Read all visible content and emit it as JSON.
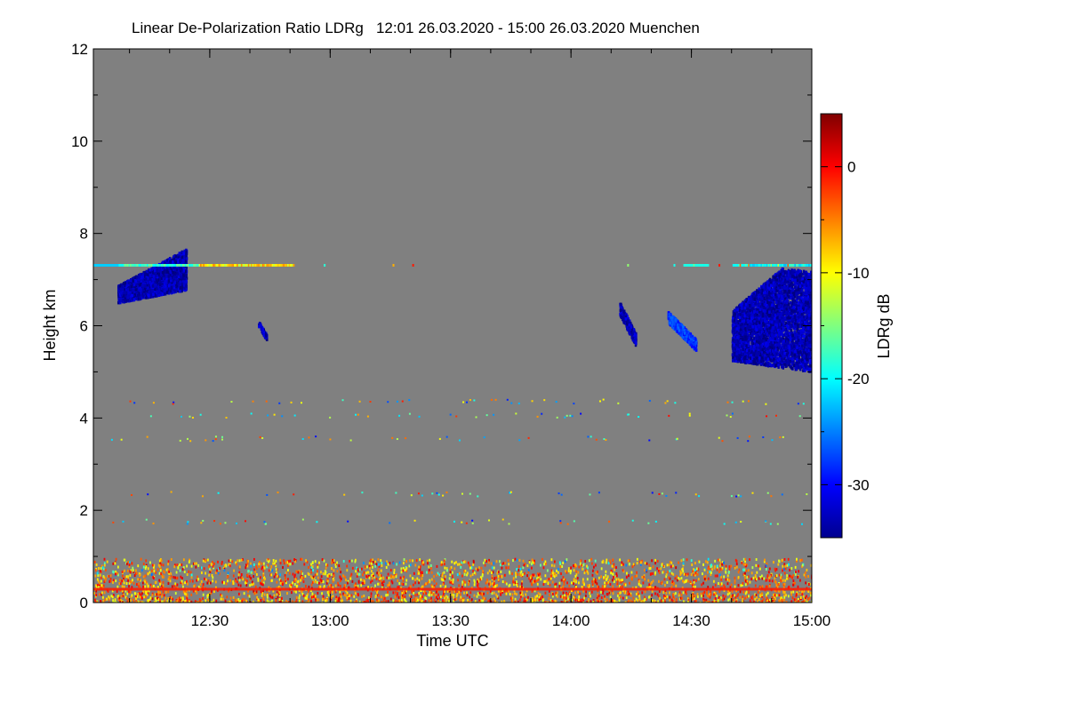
{
  "chart_data": {
    "type": "heatmap",
    "title": "Linear De-Polarization Ratio LDRg",
    "subtitle": "12:01 26.03.2020 - 15:00 26.03.2020 Muenchen",
    "xlabel": "Time UTC",
    "ylabel": "Height km",
    "x_range_minutes_utc": [
      721,
      900
    ],
    "x_ticks": [
      {
        "label": "12:30",
        "minutes": 750
      },
      {
        "label": "13:00",
        "minutes": 780
      },
      {
        "label": "13:30",
        "minutes": 810
      },
      {
        "label": "14:00",
        "minutes": 840
      },
      {
        "label": "14:30",
        "minutes": 870
      },
      {
        "label": "15:00",
        "minutes": 900
      }
    ],
    "ylim": [
      0,
      12
    ],
    "y_ticks": [
      0,
      2,
      4,
      6,
      8,
      10,
      12
    ],
    "colorbar": {
      "label": "LDRg dB",
      "range": [
        -35,
        5
      ],
      "ticks": [
        {
          "label": "0",
          "value": 0
        },
        {
          "label": "-10",
          "value": -10
        },
        {
          "label": "-20",
          "value": -20
        },
        {
          "label": "-30",
          "value": -30
        }
      ],
      "colormap": "jet"
    },
    "background_color": "#808080",
    "features": [
      {
        "name": "cirrus-patch-1",
        "t_start": 727,
        "t_end": 744,
        "h_min": 6.3,
        "h_max": 7.9,
        "ldr": -33
      },
      {
        "name": "cirrus-patch-2",
        "t_start": 762,
        "t_end": 764,
        "h_min": 5.7,
        "h_max": 6.1,
        "ldr": -33
      },
      {
        "name": "cirrus-patch-3",
        "t_start": 852,
        "t_end": 856,
        "h_min": 5.6,
        "h_max": 6.5,
        "ldr": -33
      },
      {
        "name": "cirrus-patch-4",
        "t_start": 864,
        "t_end": 871,
        "h_min": 5.5,
        "h_max": 6.3,
        "ldr": -28
      },
      {
        "name": "cirrus-patch-5",
        "t_start": 880,
        "t_end": 900,
        "h_min": 5.0,
        "h_max": 7.4,
        "ldr": -33
      },
      {
        "name": "line-7km",
        "t_start": 721,
        "t_end": 900,
        "h": 7.3,
        "ldr": -15
      },
      {
        "name": "boundary-layer",
        "t_start": 721,
        "t_end": 900,
        "h_min": 0.0,
        "h_max": 0.95,
        "ldr": -5
      }
    ]
  }
}
